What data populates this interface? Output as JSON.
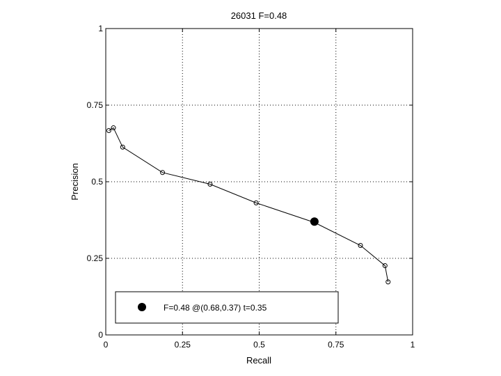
{
  "chart_data": {
    "type": "line",
    "title": "26031 F=0.48",
    "xlabel": "Recall",
    "ylabel": "Precision",
    "xlim": [
      0,
      1
    ],
    "ylim": [
      0,
      1
    ],
    "grid": true,
    "xticks": [
      0,
      0.25,
      0.5,
      0.75,
      1
    ],
    "xtick_labels": [
      "0",
      "0.25",
      "0.5",
      "0.75",
      "1"
    ],
    "yticks": [
      0,
      0.25,
      0.5,
      0.75,
      1
    ],
    "ytick_labels": [
      "0",
      "0.25",
      "0.5",
      "0.75",
      "1"
    ],
    "series": [
      {
        "x": [
          0.01,
          0.025,
          0.055,
          0.185,
          0.34,
          0.49,
          0.68,
          0.83,
          0.91,
          0.92
        ],
        "y": [
          0.667,
          0.676,
          0.613,
          0.53,
          0.492,
          0.431,
          0.367,
          0.292,
          0.226,
          0.173
        ]
      }
    ],
    "highlight": {
      "x": 0.68,
      "y": 0.37
    },
    "legend": {
      "text": "F=0.48 @(0.68,0.37) t=0.35",
      "placement": "bottom-left"
    }
  }
}
